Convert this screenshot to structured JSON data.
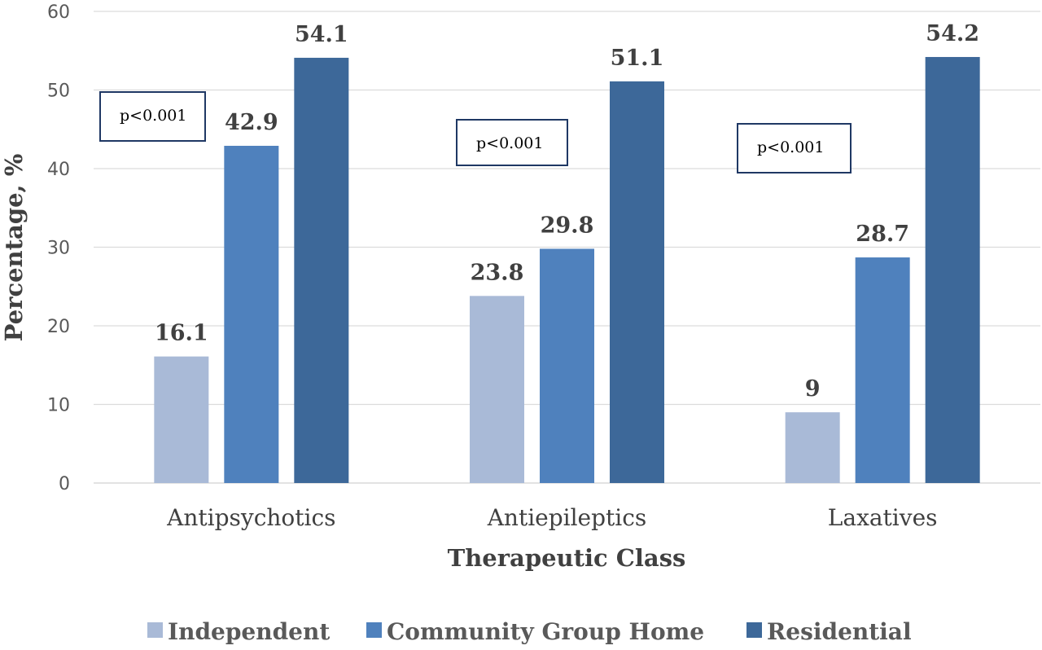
{
  "chart_data": {
    "type": "bar",
    "categories": [
      "Antipsychotics",
      "Antiepileptics",
      "Laxatives"
    ],
    "series": [
      {
        "name": "Independent",
        "values": [
          16.1,
          23.8,
          9
        ],
        "labels": [
          "16.1",
          "23.8",
          "9"
        ],
        "color": "#a9bad7"
      },
      {
        "name": "Community Group Home",
        "values": [
          42.9,
          29.8,
          28.7
        ],
        "labels": [
          "42.9",
          "29.8",
          "28.7"
        ],
        "color": "#4f81bd"
      },
      {
        "name": "Residential",
        "values": [
          54.1,
          51.1,
          54.2
        ],
        "labels": [
          "54.1",
          "51.1",
          "54.2"
        ],
        "color": "#3d6899"
      }
    ],
    "xlabel": "Therapeutic Class",
    "ylabel": "Percentage, %",
    "ylim": [
      0,
      60
    ],
    "yticks": [
      "0",
      "10",
      "20",
      "30",
      "40",
      "50",
      "60"
    ],
    "annotations": [
      "p<0.001",
      "p<0.001",
      "p<0.001"
    ],
    "grid": true,
    "legend_position": "bottom"
  }
}
